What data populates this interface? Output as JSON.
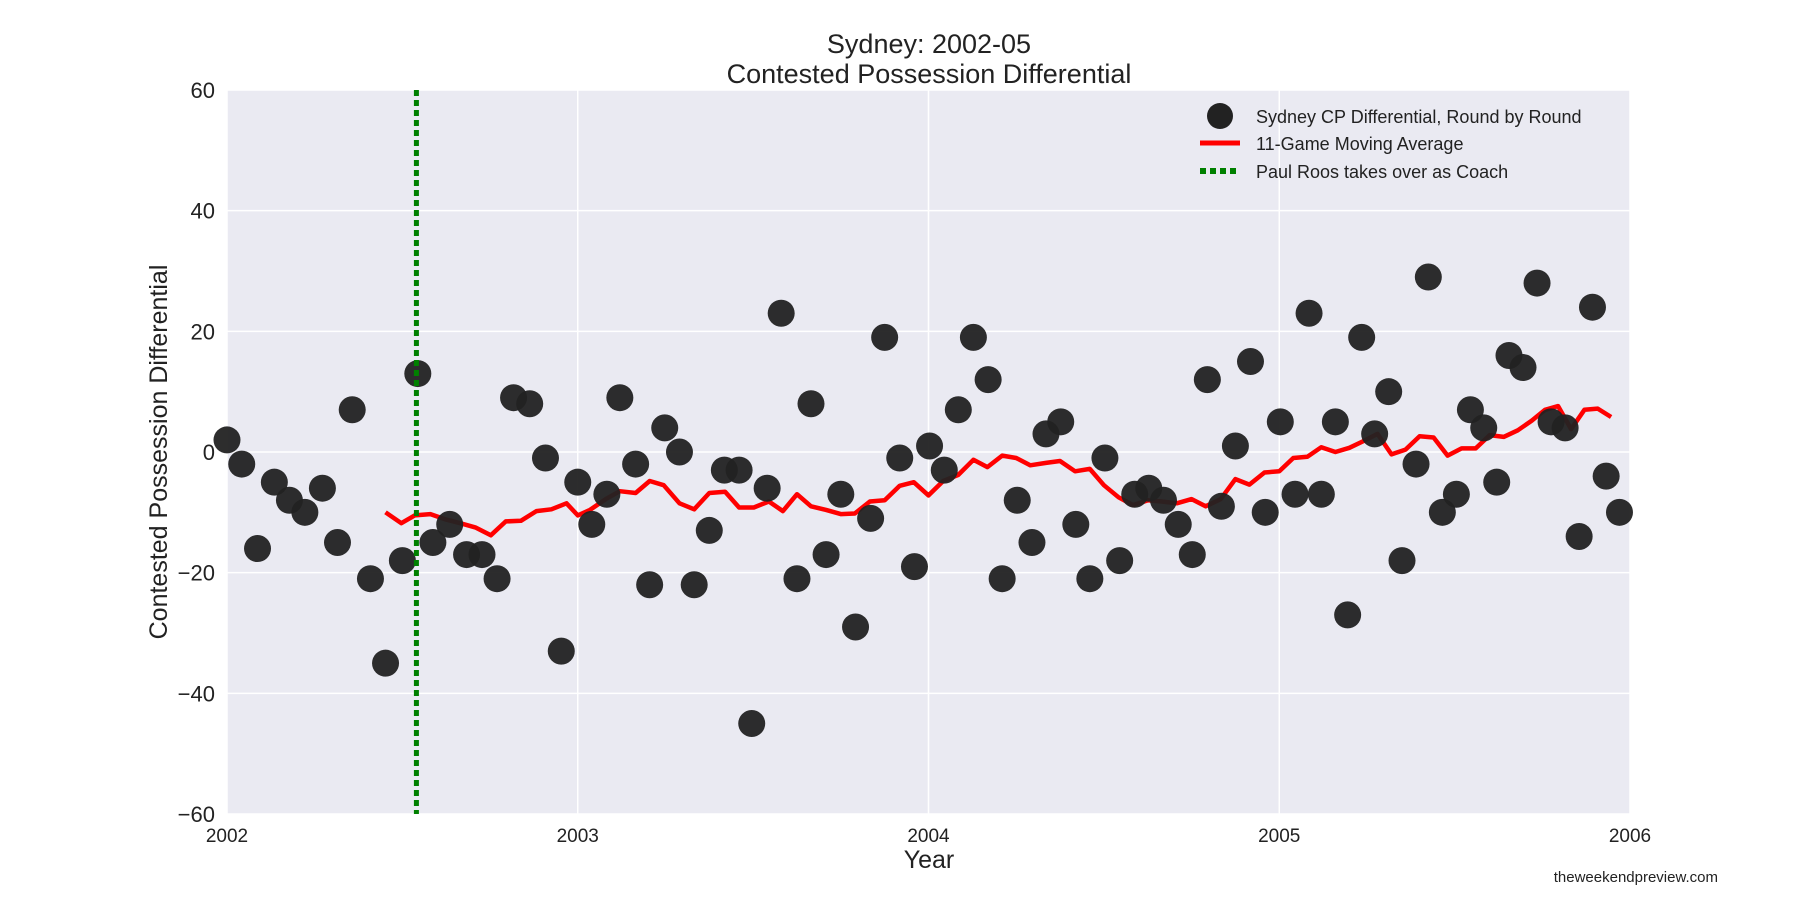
{
  "chart_data": {
    "type": "scatter",
    "title_line1": "Sydney: 2002-05",
    "title_line2": "Contested Possession Differential",
    "xlabel": "Year",
    "ylabel": "Contested Possession Differential",
    "xlim": [
      2002,
      2006
    ],
    "ylim": [
      -60,
      60
    ],
    "xticks": [
      "2002",
      "2003",
      "2004",
      "2005",
      "2006"
    ],
    "yticks": [
      "60",
      "40",
      "20",
      "0",
      "−20",
      "−40",
      "−60"
    ],
    "grid": true,
    "legend_position": "top-right",
    "series": [
      {
        "name": "Sydney CP Differential, Round by Round",
        "kind": "scatter",
        "color": "#222222",
        "points": [
          [
            2002.0,
            2
          ],
          [
            2002.042,
            -2
          ],
          [
            2002.087,
            -16
          ],
          [
            2002.135,
            -5
          ],
          [
            2002.178,
            -8
          ],
          [
            2002.222,
            -10
          ],
          [
            2002.272,
            -6
          ],
          [
            2002.315,
            -15
          ],
          [
            2002.357,
            7
          ],
          [
            2002.409,
            -21
          ],
          [
            2002.452,
            -35
          ],
          [
            2002.5,
            -18
          ],
          [
            2002.544,
            13
          ],
          [
            2002.587,
            -15
          ],
          [
            2002.635,
            -12
          ],
          [
            2002.683,
            -17
          ],
          [
            2002.727,
            -17
          ],
          [
            2002.77,
            -21
          ],
          [
            2002.817,
            9
          ],
          [
            2002.863,
            8
          ],
          [
            2002.908,
            -1
          ],
          [
            2002.953,
            -33
          ],
          [
            2003.0,
            -5
          ],
          [
            2003.04,
            -12
          ],
          [
            2003.083,
            -7
          ],
          [
            2003.12,
            9
          ],
          [
            2003.165,
            -2
          ],
          [
            2003.205,
            -22
          ],
          [
            2003.248,
            4
          ],
          [
            2003.29,
            0
          ],
          [
            2003.332,
            -22
          ],
          [
            2003.375,
            -13
          ],
          [
            2003.418,
            -3
          ],
          [
            2003.46,
            -3
          ],
          [
            2003.496,
            -45
          ],
          [
            2003.54,
            -6
          ],
          [
            2003.58,
            23
          ],
          [
            2003.625,
            -21
          ],
          [
            2003.665,
            8
          ],
          [
            2003.708,
            -17
          ],
          [
            2003.75,
            -7
          ],
          [
            2003.792,
            -29
          ],
          [
            2003.835,
            -11
          ],
          [
            2003.875,
            19
          ],
          [
            2003.918,
            -1
          ],
          [
            2003.96,
            -19
          ],
          [
            2004.003,
            1
          ],
          [
            2004.045,
            -3
          ],
          [
            2004.085,
            7
          ],
          [
            2004.128,
            19
          ],
          [
            2004.17,
            12
          ],
          [
            2004.21,
            -21
          ],
          [
            2004.253,
            -8
          ],
          [
            2004.295,
            -15
          ],
          [
            2004.335,
            3
          ],
          [
            2004.377,
            5
          ],
          [
            2004.42,
            -12
          ],
          [
            2004.46,
            -21
          ],
          [
            2004.503,
            -1
          ],
          [
            2004.545,
            -18
          ],
          [
            2004.588,
            -7
          ],
          [
            2004.628,
            -6
          ],
          [
            2004.67,
            -8
          ],
          [
            2004.712,
            -12
          ],
          [
            2004.752,
            -17
          ],
          [
            2004.795,
            12
          ],
          [
            2004.835,
            -9
          ],
          [
            2004.875,
            1
          ],
          [
            2004.918,
            15
          ],
          [
            2004.96,
            -10
          ],
          [
            2005.003,
            5
          ],
          [
            2005.045,
            -7
          ],
          [
            2005.085,
            23
          ],
          [
            2005.12,
            -7
          ],
          [
            2005.16,
            5
          ],
          [
            2005.195,
            -27
          ],
          [
            2005.235,
            19
          ],
          [
            2005.272,
            3
          ],
          [
            2005.312,
            10
          ],
          [
            2005.35,
            -18
          ],
          [
            2005.39,
            -2
          ],
          [
            2005.425,
            29
          ],
          [
            2005.465,
            -10
          ],
          [
            2005.505,
            -7
          ],
          [
            2005.545,
            7
          ],
          [
            2005.583,
            4
          ],
          [
            2005.62,
            -5
          ],
          [
            2005.655,
            16
          ],
          [
            2005.695,
            14
          ],
          [
            2005.735,
            28
          ],
          [
            2005.775,
            5
          ],
          [
            2005.815,
            4
          ],
          [
            2005.855,
            -14
          ],
          [
            2005.893,
            24
          ],
          [
            2005.932,
            -4
          ],
          [
            2005.97,
            -10
          ]
        ]
      },
      {
        "name": "11-Game Moving Average",
        "kind": "line",
        "color": "#ff0000",
        "points": [
          [
            2002.452,
            -10.0
          ],
          [
            2002.497,
            -11.8
          ],
          [
            2002.535,
            -10.5
          ],
          [
            2002.58,
            -10.3
          ],
          [
            2002.625,
            -11.2
          ],
          [
            2002.665,
            -11.8
          ],
          [
            2002.708,
            -12.5
          ],
          [
            2002.752,
            -13.8
          ],
          [
            2002.795,
            -11.5
          ],
          [
            2002.838,
            -11.4
          ],
          [
            2002.882,
            -9.8
          ],
          [
            2002.925,
            -9.5
          ],
          [
            2002.968,
            -8.5
          ],
          [
            2003.0,
            -10.5
          ],
          [
            2003.035,
            -9.6
          ],
          [
            2003.08,
            -7.8
          ],
          [
            2003.12,
            -6.5
          ],
          [
            2003.165,
            -6.8
          ],
          [
            2003.205,
            -4.8
          ],
          [
            2003.245,
            -5.5
          ],
          [
            2003.29,
            -8.5
          ],
          [
            2003.332,
            -9.5
          ],
          [
            2003.375,
            -6.8
          ],
          [
            2003.42,
            -6.6
          ],
          [
            2003.46,
            -9.2
          ],
          [
            2003.502,
            -9.2
          ],
          [
            2003.545,
            -8.2
          ],
          [
            2003.585,
            -9.8
          ],
          [
            2003.625,
            -7.0
          ],
          [
            2003.665,
            -9.0
          ],
          [
            2003.708,
            -9.6
          ],
          [
            2003.75,
            -10.3
          ],
          [
            2003.79,
            -10.2
          ],
          [
            2003.833,
            -8.2
          ],
          [
            2003.875,
            -8.0
          ],
          [
            2003.918,
            -5.6
          ],
          [
            2003.958,
            -5.0
          ],
          [
            2004.0,
            -7.2
          ],
          [
            2004.042,
            -4.8
          ],
          [
            2004.085,
            -3.8
          ],
          [
            2004.128,
            -1.3
          ],
          [
            2004.168,
            -2.5
          ],
          [
            2004.21,
            -0.6
          ],
          [
            2004.25,
            -1.0
          ],
          [
            2004.29,
            -2.2
          ],
          [
            2004.335,
            -1.8
          ],
          [
            2004.375,
            -1.5
          ],
          [
            2004.418,
            -3.2
          ],
          [
            2004.46,
            -2.8
          ],
          [
            2004.5,
            -5.5
          ],
          [
            2004.542,
            -7.5
          ],
          [
            2004.583,
            -8.8
          ],
          [
            2004.625,
            -8.0
          ],
          [
            2004.665,
            -8.2
          ],
          [
            2004.708,
            -8.5
          ],
          [
            2004.75,
            -7.8
          ],
          [
            2004.79,
            -9.0
          ],
          [
            2004.833,
            -7.8
          ],
          [
            2004.875,
            -4.5
          ],
          [
            2004.915,
            -5.4
          ],
          [
            2004.958,
            -3.4
          ],
          [
            2005.0,
            -3.2
          ],
          [
            2005.04,
            -1.0
          ],
          [
            2005.08,
            -0.8
          ],
          [
            2005.12,
            0.8
          ],
          [
            2005.16,
            0.0
          ],
          [
            2005.2,
            0.7
          ],
          [
            2005.24,
            1.8
          ],
          [
            2005.28,
            3.0
          ],
          [
            2005.32,
            -0.4
          ],
          [
            2005.36,
            0.4
          ],
          [
            2005.4,
            2.6
          ],
          [
            2005.44,
            2.4
          ],
          [
            2005.48,
            -0.6
          ],
          [
            2005.52,
            0.6
          ],
          [
            2005.56,
            0.6
          ],
          [
            2005.6,
            2.8
          ],
          [
            2005.64,
            2.5
          ],
          [
            2005.68,
            3.6
          ],
          [
            2005.72,
            5.2
          ],
          [
            2005.758,
            7.0
          ],
          [
            2005.795,
            7.6
          ],
          [
            2005.832,
            3.8
          ],
          [
            2005.87,
            7.0
          ],
          [
            2005.908,
            7.2
          ],
          [
            2005.946,
            5.8
          ]
        ]
      },
      {
        "name": "Paul Roos takes over as Coach",
        "kind": "vline",
        "color": "#008000",
        "x": 2002.54
      }
    ]
  },
  "credit": "theweekendpreview.com"
}
